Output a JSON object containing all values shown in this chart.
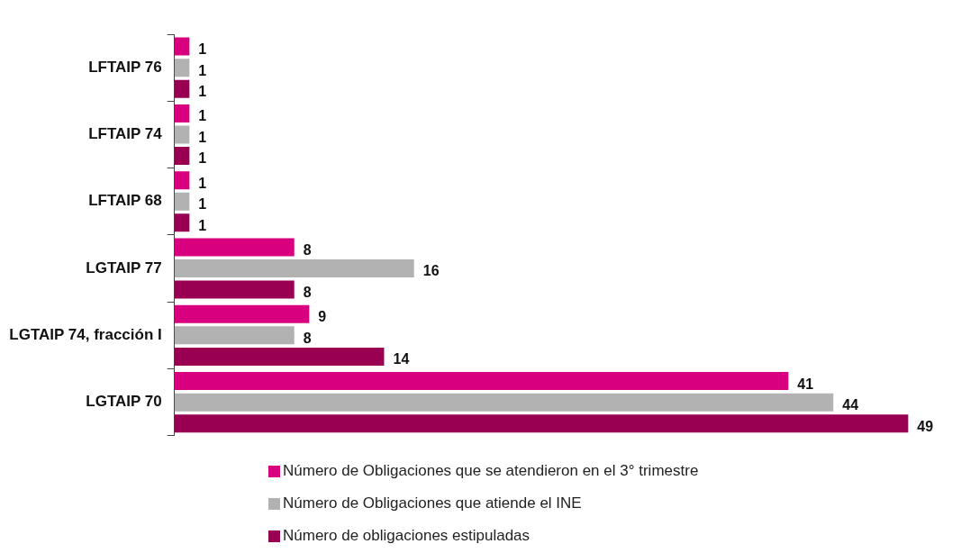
{
  "chart_data": {
    "type": "bar",
    "orientation": "horizontal",
    "categories": [
      "LFTAIP 76",
      "LFTAIP 74",
      "LFTAIP 68",
      "LGTAIP 77",
      "LGTAIP 74, fracción I",
      "LGTAIP 70"
    ],
    "series": [
      {
        "name": "Número de Obligaciones que se atendieron en el 3° trimestre",
        "color": "#d8007f",
        "values": [
          1,
          1,
          1,
          8,
          9,
          41
        ]
      },
      {
        "name": "Número de Obligaciones que atiende el INE",
        "color": "#b2b2b2",
        "values": [
          1,
          1,
          1,
          16,
          8,
          44
        ]
      },
      {
        "name": "Número de obligaciones estipuladas",
        "color": "#990052",
        "values": [
          1,
          1,
          1,
          8,
          14,
          49
        ]
      }
    ],
    "data_labels": true,
    "legend": "bottom",
    "grid": false
  }
}
